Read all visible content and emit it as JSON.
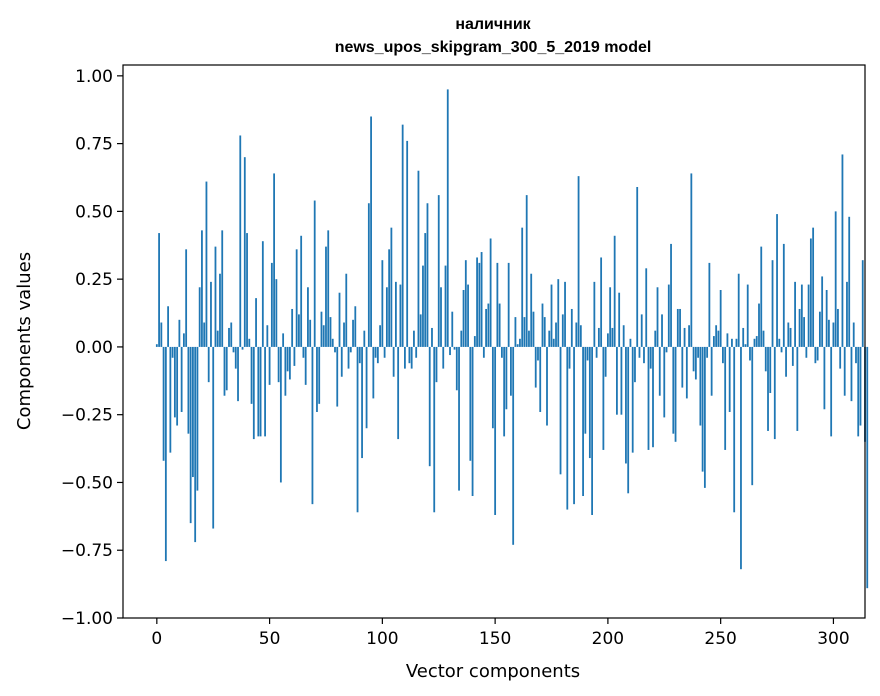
{
  "chart_data": {
    "type": "bar",
    "title": "наличник",
    "subtitle": "news_upos_skipgram_300_5_2019 model",
    "xlabel": "Vector components",
    "ylabel": "Components values",
    "xlim": [
      -15,
      314
    ],
    "ylim": [
      -1.0,
      1.04
    ],
    "xticks": [
      0,
      50,
      100,
      150,
      200,
      250,
      300
    ],
    "xtick_labels": [
      "0",
      "50",
      "100",
      "150",
      "200",
      "250",
      "300"
    ],
    "yticks": [
      -1.0,
      -0.75,
      -0.5,
      -0.25,
      0.0,
      0.25,
      0.5,
      0.75,
      1.0
    ],
    "ytick_labels": [
      "−1.00",
      "−0.75",
      "−0.50",
      "−0.25",
      "0.00",
      "0.25",
      "0.50",
      "0.75",
      "1.00"
    ],
    "bar_color": "#1f77b4",
    "grid": false,
    "values": [
      0.01,
      0.42,
      0.09,
      -0.42,
      -0.79,
      0.15,
      -0.39,
      -0.04,
      -0.26,
      -0.29,
      0.1,
      -0.24,
      0.05,
      0.36,
      -0.32,
      -0.65,
      -0.48,
      -0.72,
      -0.53,
      0.22,
      0.43,
      0.09,
      0.61,
      -0.13,
      0.24,
      -0.67,
      0.37,
      0.06,
      0.27,
      0.43,
      -0.18,
      -0.16,
      0.07,
      0.09,
      -0.02,
      -0.08,
      -0.2,
      0.78,
      -0.01,
      0.7,
      0.42,
      0.03,
      -0.21,
      -0.34,
      0.18,
      -0.33,
      -0.33,
      0.39,
      -0.33,
      0.08,
      -0.14,
      0.31,
      0.64,
      0.25,
      -0.13,
      -0.5,
      0.05,
      -0.18,
      -0.09,
      -0.12,
      0.14,
      -0.07,
      0.36,
      0.12,
      0.41,
      -0.04,
      -0.14,
      0.22,
      0.1,
      -0.58,
      0.54,
      -0.24,
      -0.21,
      0.13,
      0.08,
      0.37,
      0.43,
      0.11,
      0.03,
      -0.02,
      -0.22,
      0.2,
      -0.11,
      0.09,
      0.27,
      -0.08,
      -0.02,
      0.1,
      0.15,
      -0.61,
      -0.06,
      -0.41,
      0.06,
      -0.3,
      0.53,
      0.85,
      -0.19,
      -0.04,
      -0.06,
      0.08,
      0.32,
      -0.04,
      0.22,
      0.36,
      0.44,
      -0.11,
      0.24,
      -0.34,
      0.23,
      0.82,
      -0.08,
      0.76,
      -0.06,
      -0.08,
      0.06,
      -0.04,
      0.65,
      0.12,
      0.3,
      0.42,
      0.53,
      -0.44,
      0.07,
      -0.61,
      -0.13,
      0.56,
      0.22,
      -0.08,
      0.3,
      0.95,
      -0.03,
      0.13,
      -0.01,
      -0.16,
      -0.53,
      0.06,
      0.21,
      0.32,
      0.23,
      -0.42,
      -0.55,
      0.04,
      0.33,
      0.31,
      0.35,
      -0.04,
      0.14,
      0.16,
      0.4,
      -0.3,
      -0.62,
      0.31,
      0.16,
      -0.04,
      -0.33,
      -0.23,
      0.31,
      -0.18,
      -0.73,
      0.11,
      0.01,
      0.03,
      0.44,
      0.11,
      0.56,
      0.06,
      0.27,
      0.13,
      -0.15,
      -0.05,
      -0.24,
      0.16,
      0.11,
      -0.29,
      0.06,
      0.23,
      0.03,
      0.09,
      0.25,
      -0.47,
      0.12,
      0.24,
      -0.6,
      -0.08,
      0.14,
      -0.58,
      0.09,
      0.63,
      0.08,
      -0.55,
      -0.32,
      -0.05,
      -0.41,
      -0.62,
      0.24,
      -0.04,
      0.07,
      0.33,
      -0.38,
      -0.11,
      0.05,
      0.22,
      0.07,
      0.41,
      -0.25,
      0.2,
      -0.25,
      0.08,
      -0.43,
      -0.54,
      0.03,
      -0.39,
      -0.13,
      0.59,
      -0.04,
      0.12,
      -0.06,
      0.29,
      -0.38,
      -0.08,
      -0.37,
      0.06,
      0.22,
      -0.18,
      0.12,
      -0.26,
      -0.02,
      0.23,
      0.38,
      -0.32,
      -0.35,
      0.14,
      0.14,
      -0.15,
      0.07,
      -0.19,
      0.08,
      0.64,
      -0.09,
      -0.12,
      -0.04,
      -0.29,
      -0.46,
      -0.52,
      -0.04,
      0.31,
      -0.18,
      0.04,
      0.08,
      0.06,
      0.21,
      -0.06,
      -0.38,
      0.05,
      -0.24,
      0.03,
      -0.61,
      0.03,
      0.27,
      -0.82,
      0.07,
      0.01,
      0.23,
      -0.05,
      -0.51,
      0.03,
      0.04,
      0.16,
      0.37,
      0.06,
      -0.09,
      -0.31,
      -0.17,
      0.32,
      -0.34,
      0.49,
      0.03,
      -0.02,
      0.38,
      -0.11,
      0.09,
      0.07,
      -0.07,
      0.24,
      -0.31,
      0.14,
      0.23,
      0.11,
      -0.04,
      0.23,
      0.4,
      0.44,
      -0.06,
      -0.05,
      0.13,
      0.26,
      -0.23,
      0.21,
      0.1,
      -0.33,
      0.09,
      0.5,
      0.14,
      -0.08,
      0.71,
      -0.18,
      0.24,
      0.48,
      -0.2,
      0.09,
      -0.06,
      -0.33,
      -0.29,
      0.32,
      -0.35,
      -0.89
    ]
  }
}
